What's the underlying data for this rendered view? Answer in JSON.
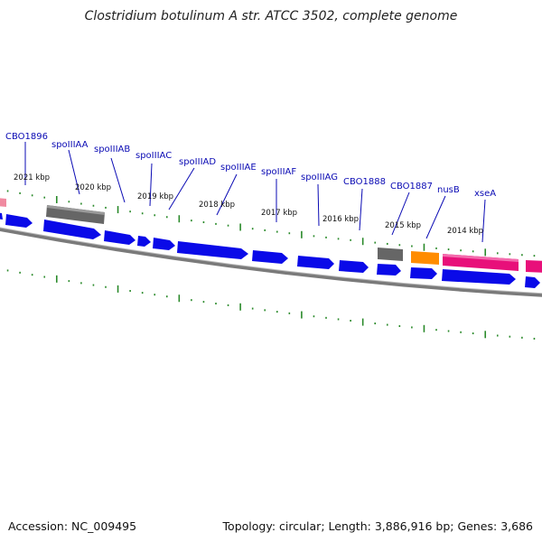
{
  "title": "Clostridium botulinum A str. ATCC 3502, complete genome",
  "footer": {
    "accession_label": "Accession:",
    "accession": "NC_009495",
    "topology_label": "Topology:",
    "topology": "circular",
    "length_label": "Length:",
    "length": "3,886,916 bp",
    "genes_label": "Genes:",
    "genes": "3,686"
  },
  "colors": {
    "forward": "#0a0ae8",
    "forward_shade": "#6a6af2",
    "reverse": "#0a0ae8",
    "grey_feature": "#666666",
    "orange_feature": "#ff8c00",
    "pink_feature": "#e8107a",
    "light_pink_feature": "#f08aa0",
    "backbone": "#7a7a7a",
    "ticks": "#2a8a2a",
    "label_line": "#0a0ab4"
  },
  "scale_labels": [
    "2021 kbp",
    "2020 kbp",
    "2019 kbp",
    "2018 kbp",
    "2017 kbp",
    "2016 kbp",
    "2015 kbp",
    "2014 kbp"
  ],
  "gene_labels": [
    "CBO1896",
    "spoIIIAA",
    "spoIIIAB",
    "spoIIIAC",
    "spoIIIAD",
    "spoIIIAE",
    "spoIIIAF",
    "spoIIIAG",
    "CBO1888",
    "CBO1887",
    "nusB",
    "xseA"
  ]
}
